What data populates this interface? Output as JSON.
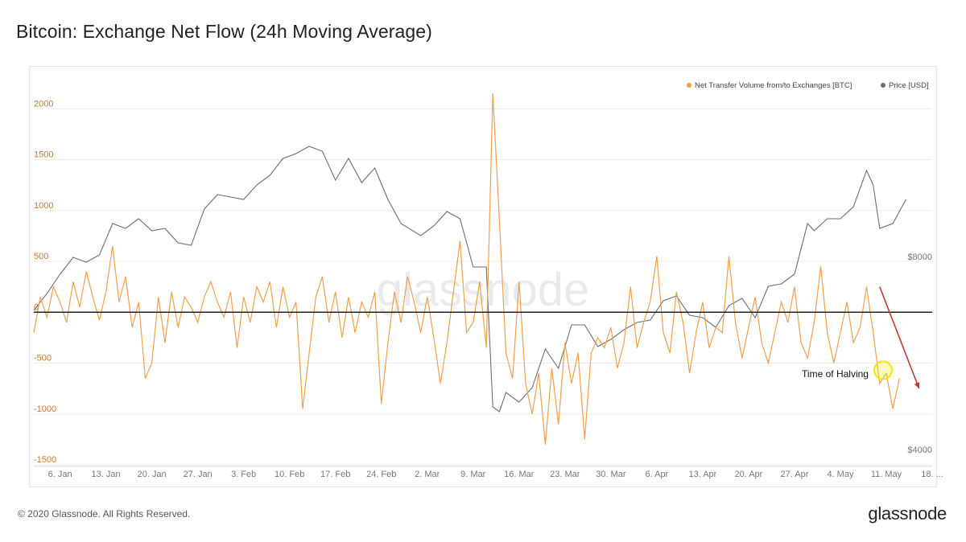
{
  "title": "Bitcoin: Exchange Net Flow (24h Moving Average)",
  "footer": {
    "copyright": "© 2020 Glassnode. All Rights Reserved.",
    "brand": "glassnode"
  },
  "watermark": "glassnode",
  "colors": {
    "flow": "#f0a04b",
    "price": "#6d6d6d",
    "zero": "#222222",
    "arrow": "#c0392b",
    "halving": "#f2e600"
  },
  "chart_data": {
    "type": "line",
    "title": "Bitcoin: Exchange Net Flow (24h Moving Average)",
    "legend": {
      "placement": "top-right",
      "entries": [
        "Net Transfer Volume from/to Exchanges [BTC]",
        "Price [USD]"
      ]
    },
    "x_ticks": [
      "6. Jan",
      "13. Jan",
      "20. Jan",
      "27. Jan",
      "3. Feb",
      "10. Feb",
      "17. Feb",
      "24. Feb",
      "2. Mar",
      "9. Mar",
      "16. Mar",
      "23. Mar",
      "30. Mar",
      "6. Apr",
      "13. Apr",
      "20. Apr",
      "27. Apr",
      "4. May",
      "11. May",
      "18. ..."
    ],
    "x_range": [
      "2020-01-02",
      "2020-05-18"
    ],
    "y_left": {
      "ticks": [
        2000,
        1500,
        1000,
        500,
        0,
        -500,
        -1000,
        -1500
      ],
      "range": [
        -1500,
        2200
      ]
    },
    "y_right": {
      "ticks": [
        "$8000",
        "$4000"
      ],
      "range": [
        3800,
        11600
      ]
    },
    "grid": true,
    "series": [
      {
        "name": "Net Transfer Volume from/to Exchanges [BTC]",
        "axis": "left",
        "points": [
          [
            "2020-01-02",
            -200
          ],
          [
            "2020-01-03",
            150
          ],
          [
            "2020-01-04",
            -50
          ],
          [
            "2020-01-05",
            250
          ],
          [
            "2020-01-06",
            100
          ],
          [
            "2020-01-07",
            -100
          ],
          [
            "2020-01-08",
            300
          ],
          [
            "2020-01-09",
            50
          ],
          [
            "2020-01-10",
            400
          ],
          [
            "2020-01-11",
            150
          ],
          [
            "2020-01-12",
            -80
          ],
          [
            "2020-01-13",
            200
          ],
          [
            "2020-01-14",
            650
          ],
          [
            "2020-01-15",
            100
          ],
          [
            "2020-01-16",
            350
          ],
          [
            "2020-01-17",
            -150
          ],
          [
            "2020-01-18",
            100
          ],
          [
            "2020-01-19",
            -650
          ],
          [
            "2020-01-20",
            -500
          ],
          [
            "2020-01-21",
            150
          ],
          [
            "2020-01-22",
            -300
          ],
          [
            "2020-01-23",
            200
          ],
          [
            "2020-01-24",
            -150
          ],
          [
            "2020-01-25",
            150
          ],
          [
            "2020-01-26",
            50
          ],
          [
            "2020-01-27",
            -100
          ],
          [
            "2020-01-28",
            150
          ],
          [
            "2020-01-29",
            300
          ],
          [
            "2020-01-30",
            100
          ],
          [
            "2020-01-31",
            -50
          ],
          [
            "2020-02-01",
            200
          ],
          [
            "2020-02-02",
            -350
          ],
          [
            "2020-02-03",
            150
          ],
          [
            "2020-02-04",
            -100
          ],
          [
            "2020-02-05",
            250
          ],
          [
            "2020-02-06",
            100
          ],
          [
            "2020-02-07",
            300
          ],
          [
            "2020-02-08",
            -150
          ],
          [
            "2020-02-09",
            250
          ],
          [
            "2020-02-10",
            -50
          ],
          [
            "2020-02-11",
            100
          ],
          [
            "2020-02-12",
            -950
          ],
          [
            "2020-02-13",
            -400
          ],
          [
            "2020-02-14",
            150
          ],
          [
            "2020-02-15",
            350
          ],
          [
            "2020-02-16",
            -100
          ],
          [
            "2020-02-17",
            200
          ],
          [
            "2020-02-18",
            -250
          ],
          [
            "2020-02-19",
            150
          ],
          [
            "2020-02-20",
            -200
          ],
          [
            "2020-02-21",
            100
          ],
          [
            "2020-02-22",
            -50
          ],
          [
            "2020-02-23",
            200
          ],
          [
            "2020-02-24",
            -900
          ],
          [
            "2020-02-25",
            -300
          ],
          [
            "2020-02-26",
            200
          ],
          [
            "2020-02-27",
            -100
          ],
          [
            "2020-02-28",
            350
          ],
          [
            "2020-02-29",
            100
          ],
          [
            "2020-03-01",
            -200
          ],
          [
            "2020-03-02",
            150
          ],
          [
            "2020-03-03",
            -250
          ],
          [
            "2020-03-04",
            -700
          ],
          [
            "2020-03-05",
            -300
          ],
          [
            "2020-03-06",
            200
          ],
          [
            "2020-03-07",
            700
          ],
          [
            "2020-03-08",
            -200
          ],
          [
            "2020-03-09",
            -100
          ],
          [
            "2020-03-10",
            300
          ],
          [
            "2020-03-11",
            -350
          ],
          [
            "2020-03-12",
            2150
          ],
          [
            "2020-03-13",
            900
          ],
          [
            "2020-03-14",
            -400
          ],
          [
            "2020-03-15",
            -650
          ],
          [
            "2020-03-16",
            300
          ],
          [
            "2020-03-17",
            -700
          ],
          [
            "2020-03-18",
            -1000
          ],
          [
            "2020-03-19",
            -600
          ],
          [
            "2020-03-20",
            -1300
          ],
          [
            "2020-03-21",
            -550
          ],
          [
            "2020-03-22",
            -1100
          ],
          [
            "2020-03-23",
            -300
          ],
          [
            "2020-03-24",
            -700
          ],
          [
            "2020-03-25",
            -400
          ],
          [
            "2020-03-26",
            -1250
          ],
          [
            "2020-03-27",
            -400
          ],
          [
            "2020-03-28",
            -250
          ],
          [
            "2020-03-29",
            -350
          ],
          [
            "2020-03-30",
            -150
          ],
          [
            "2020-03-31",
            -550
          ],
          [
            "2020-04-01",
            -300
          ],
          [
            "2020-04-02",
            250
          ],
          [
            "2020-04-03",
            -350
          ],
          [
            "2020-04-04",
            -100
          ],
          [
            "2020-04-05",
            100
          ],
          [
            "2020-04-06",
            550
          ],
          [
            "2020-04-07",
            -200
          ],
          [
            "2020-04-08",
            -400
          ],
          [
            "2020-04-09",
            200
          ],
          [
            "2020-04-10",
            -100
          ],
          [
            "2020-04-11",
            -600
          ],
          [
            "2020-04-12",
            -200
          ],
          [
            "2020-04-13",
            100
          ],
          [
            "2020-04-14",
            -350
          ],
          [
            "2020-04-15",
            -150
          ],
          [
            "2020-04-16",
            -200
          ],
          [
            "2020-04-17",
            550
          ],
          [
            "2020-04-18",
            -100
          ],
          [
            "2020-04-19",
            -450
          ],
          [
            "2020-04-20",
            -150
          ],
          [
            "2020-04-21",
            150
          ],
          [
            "2020-04-22",
            -300
          ],
          [
            "2020-04-23",
            -500
          ],
          [
            "2020-04-24",
            -200
          ],
          [
            "2020-04-25",
            100
          ],
          [
            "2020-04-26",
            -100
          ],
          [
            "2020-04-27",
            250
          ],
          [
            "2020-04-28",
            -300
          ],
          [
            "2020-04-29",
            -450
          ],
          [
            "2020-04-30",
            -100
          ],
          [
            "2020-05-01",
            450
          ],
          [
            "2020-05-02",
            -200
          ],
          [
            "2020-05-03",
            -500
          ],
          [
            "2020-05-04",
            -200
          ],
          [
            "2020-05-05",
            100
          ],
          [
            "2020-05-06",
            -300
          ],
          [
            "2020-05-07",
            -150
          ],
          [
            "2020-05-08",
            250
          ],
          [
            "2020-05-09",
            -200
          ],
          [
            "2020-05-10",
            -700
          ],
          [
            "2020-05-11",
            -600
          ],
          [
            "2020-05-12",
            -950
          ],
          [
            "2020-05-13",
            -650
          ]
        ]
      },
      {
        "name": "Price [USD]",
        "axis": "right",
        "points": [
          [
            "2020-01-02",
            7000
          ],
          [
            "2020-01-04",
            7350
          ],
          [
            "2020-01-06",
            7750
          ],
          [
            "2020-01-08",
            8100
          ],
          [
            "2020-01-10",
            8000
          ],
          [
            "2020-01-12",
            8150
          ],
          [
            "2020-01-14",
            8800
          ],
          [
            "2020-01-16",
            8700
          ],
          [
            "2020-01-18",
            8900
          ],
          [
            "2020-01-20",
            8650
          ],
          [
            "2020-01-22",
            8700
          ],
          [
            "2020-01-24",
            8400
          ],
          [
            "2020-01-26",
            8350
          ],
          [
            "2020-01-28",
            9100
          ],
          [
            "2020-01-30",
            9400
          ],
          [
            "2020-02-01",
            9350
          ],
          [
            "2020-02-03",
            9300
          ],
          [
            "2020-02-05",
            9600
          ],
          [
            "2020-02-07",
            9800
          ],
          [
            "2020-02-09",
            10150
          ],
          [
            "2020-02-11",
            10250
          ],
          [
            "2020-02-13",
            10400
          ],
          [
            "2020-02-15",
            10300
          ],
          [
            "2020-02-17",
            9700
          ],
          [
            "2020-02-19",
            10150
          ],
          [
            "2020-02-21",
            9650
          ],
          [
            "2020-02-23",
            9950
          ],
          [
            "2020-02-25",
            9300
          ],
          [
            "2020-02-27",
            8800
          ],
          [
            "2020-03-01",
            8550
          ],
          [
            "2020-03-03",
            8750
          ],
          [
            "2020-03-05",
            9050
          ],
          [
            "2020-03-07",
            8900
          ],
          [
            "2020-03-09",
            7900
          ],
          [
            "2020-03-11",
            7900
          ],
          [
            "2020-03-12",
            5000
          ],
          [
            "2020-03-13",
            4900
          ],
          [
            "2020-03-14",
            5300
          ],
          [
            "2020-03-16",
            5100
          ],
          [
            "2020-03-18",
            5400
          ],
          [
            "2020-03-20",
            6200
          ],
          [
            "2020-03-22",
            5800
          ],
          [
            "2020-03-24",
            6700
          ],
          [
            "2020-03-26",
            6700
          ],
          [
            "2020-03-28",
            6250
          ],
          [
            "2020-03-30",
            6400
          ],
          [
            "2020-04-01",
            6600
          ],
          [
            "2020-04-03",
            6750
          ],
          [
            "2020-04-05",
            6800
          ],
          [
            "2020-04-07",
            7200
          ],
          [
            "2020-04-09",
            7300
          ],
          [
            "2020-04-11",
            6900
          ],
          [
            "2020-04-13",
            6850
          ],
          [
            "2020-04-15",
            6650
          ],
          [
            "2020-04-17",
            7100
          ],
          [
            "2020-04-19",
            7250
          ],
          [
            "2020-04-21",
            6850
          ],
          [
            "2020-04-23",
            7500
          ],
          [
            "2020-04-25",
            7550
          ],
          [
            "2020-04-27",
            7750
          ],
          [
            "2020-04-29",
            8800
          ],
          [
            "2020-04-30",
            8650
          ],
          [
            "2020-05-02",
            8900
          ],
          [
            "2020-05-04",
            8900
          ],
          [
            "2020-05-06",
            9150
          ],
          [
            "2020-05-08",
            9900
          ],
          [
            "2020-05-09",
            9600
          ],
          [
            "2020-05-10",
            8700
          ],
          [
            "2020-05-12",
            8800
          ],
          [
            "2020-05-14",
            9300
          ]
        ]
      }
    ],
    "annotations": [
      {
        "type": "text",
        "text": "Time of Halving",
        "date": "2020-05-11",
        "value": -600
      },
      {
        "type": "arrow",
        "from": [
          "2020-05-10",
          250
        ],
        "to": [
          "2020-05-16",
          -750
        ]
      },
      {
        "type": "circle",
        "date": "2020-05-11",
        "value": -570
      }
    ]
  }
}
